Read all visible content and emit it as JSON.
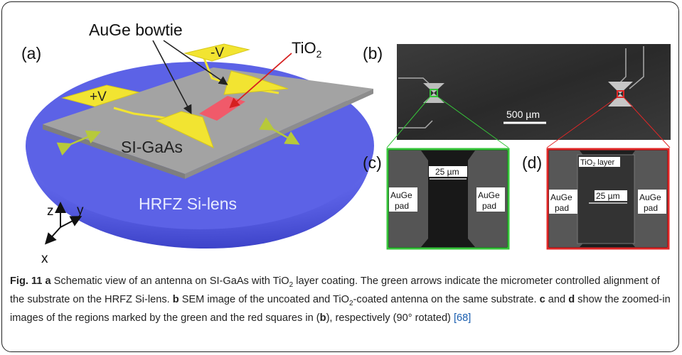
{
  "figure": {
    "panel_a": {
      "label": "(a)",
      "bowtie_label": "AuGe bowtie",
      "tio2_label": "TiO",
      "tio2_sub": "2",
      "plus_v": "+V",
      "minus_v": "-V",
      "substrate_label": "SI-GaAs",
      "lens_label": "HRFZ Si-lens",
      "axis_z": "z",
      "axis_y": "y",
      "axis_x": "x"
    },
    "panel_b": {
      "label": "(b)",
      "scale": "500 µm"
    },
    "panel_c": {
      "label": "(c)",
      "gap": "25 µm",
      "pad_left": [
        "AuGe",
        "pad"
      ],
      "pad_right": [
        "AuGe",
        "pad"
      ]
    },
    "panel_d": {
      "label": "(d)",
      "layer": "TiO",
      "layer_sub": "2",
      "layer_suffix": " layer",
      "gap": "25 µm",
      "pad_left": [
        "AuGe",
        "pad"
      ],
      "pad_right": [
        "AuGe",
        "pad"
      ]
    }
  },
  "caption": {
    "prefix": "Fig. 11",
    "a": "a",
    "t1": " Schematic view of an antenna on SI-GaAs with TiO",
    "sub1": "2",
    "t2": " layer coating. The green arrows indicate the micrometer controlled alignment of the substrate on the HRFZ Si-lens. ",
    "b": "b",
    "t3": " SEM image of the uncoated and TiO",
    "sub2": "2",
    "t4": "-coated antenna on the same substrate. ",
    "c": "c",
    "t5": " and ",
    "d": "d",
    "t6": " show the zoomed-in images of the regions marked by the green and the red squares in (",
    "b2": "b",
    "t7": "), respectively (90° rotated) ",
    "ref": "[68]"
  },
  "colors": {
    "lens": "#5c62e6",
    "substrate": "#a3a3a3",
    "gold": "#f2e431",
    "tio2": "#f05a6a",
    "green": "#36c43a",
    "red": "#e02727",
    "arrow": "#b7c93a",
    "link": "#1b5fb0"
  }
}
